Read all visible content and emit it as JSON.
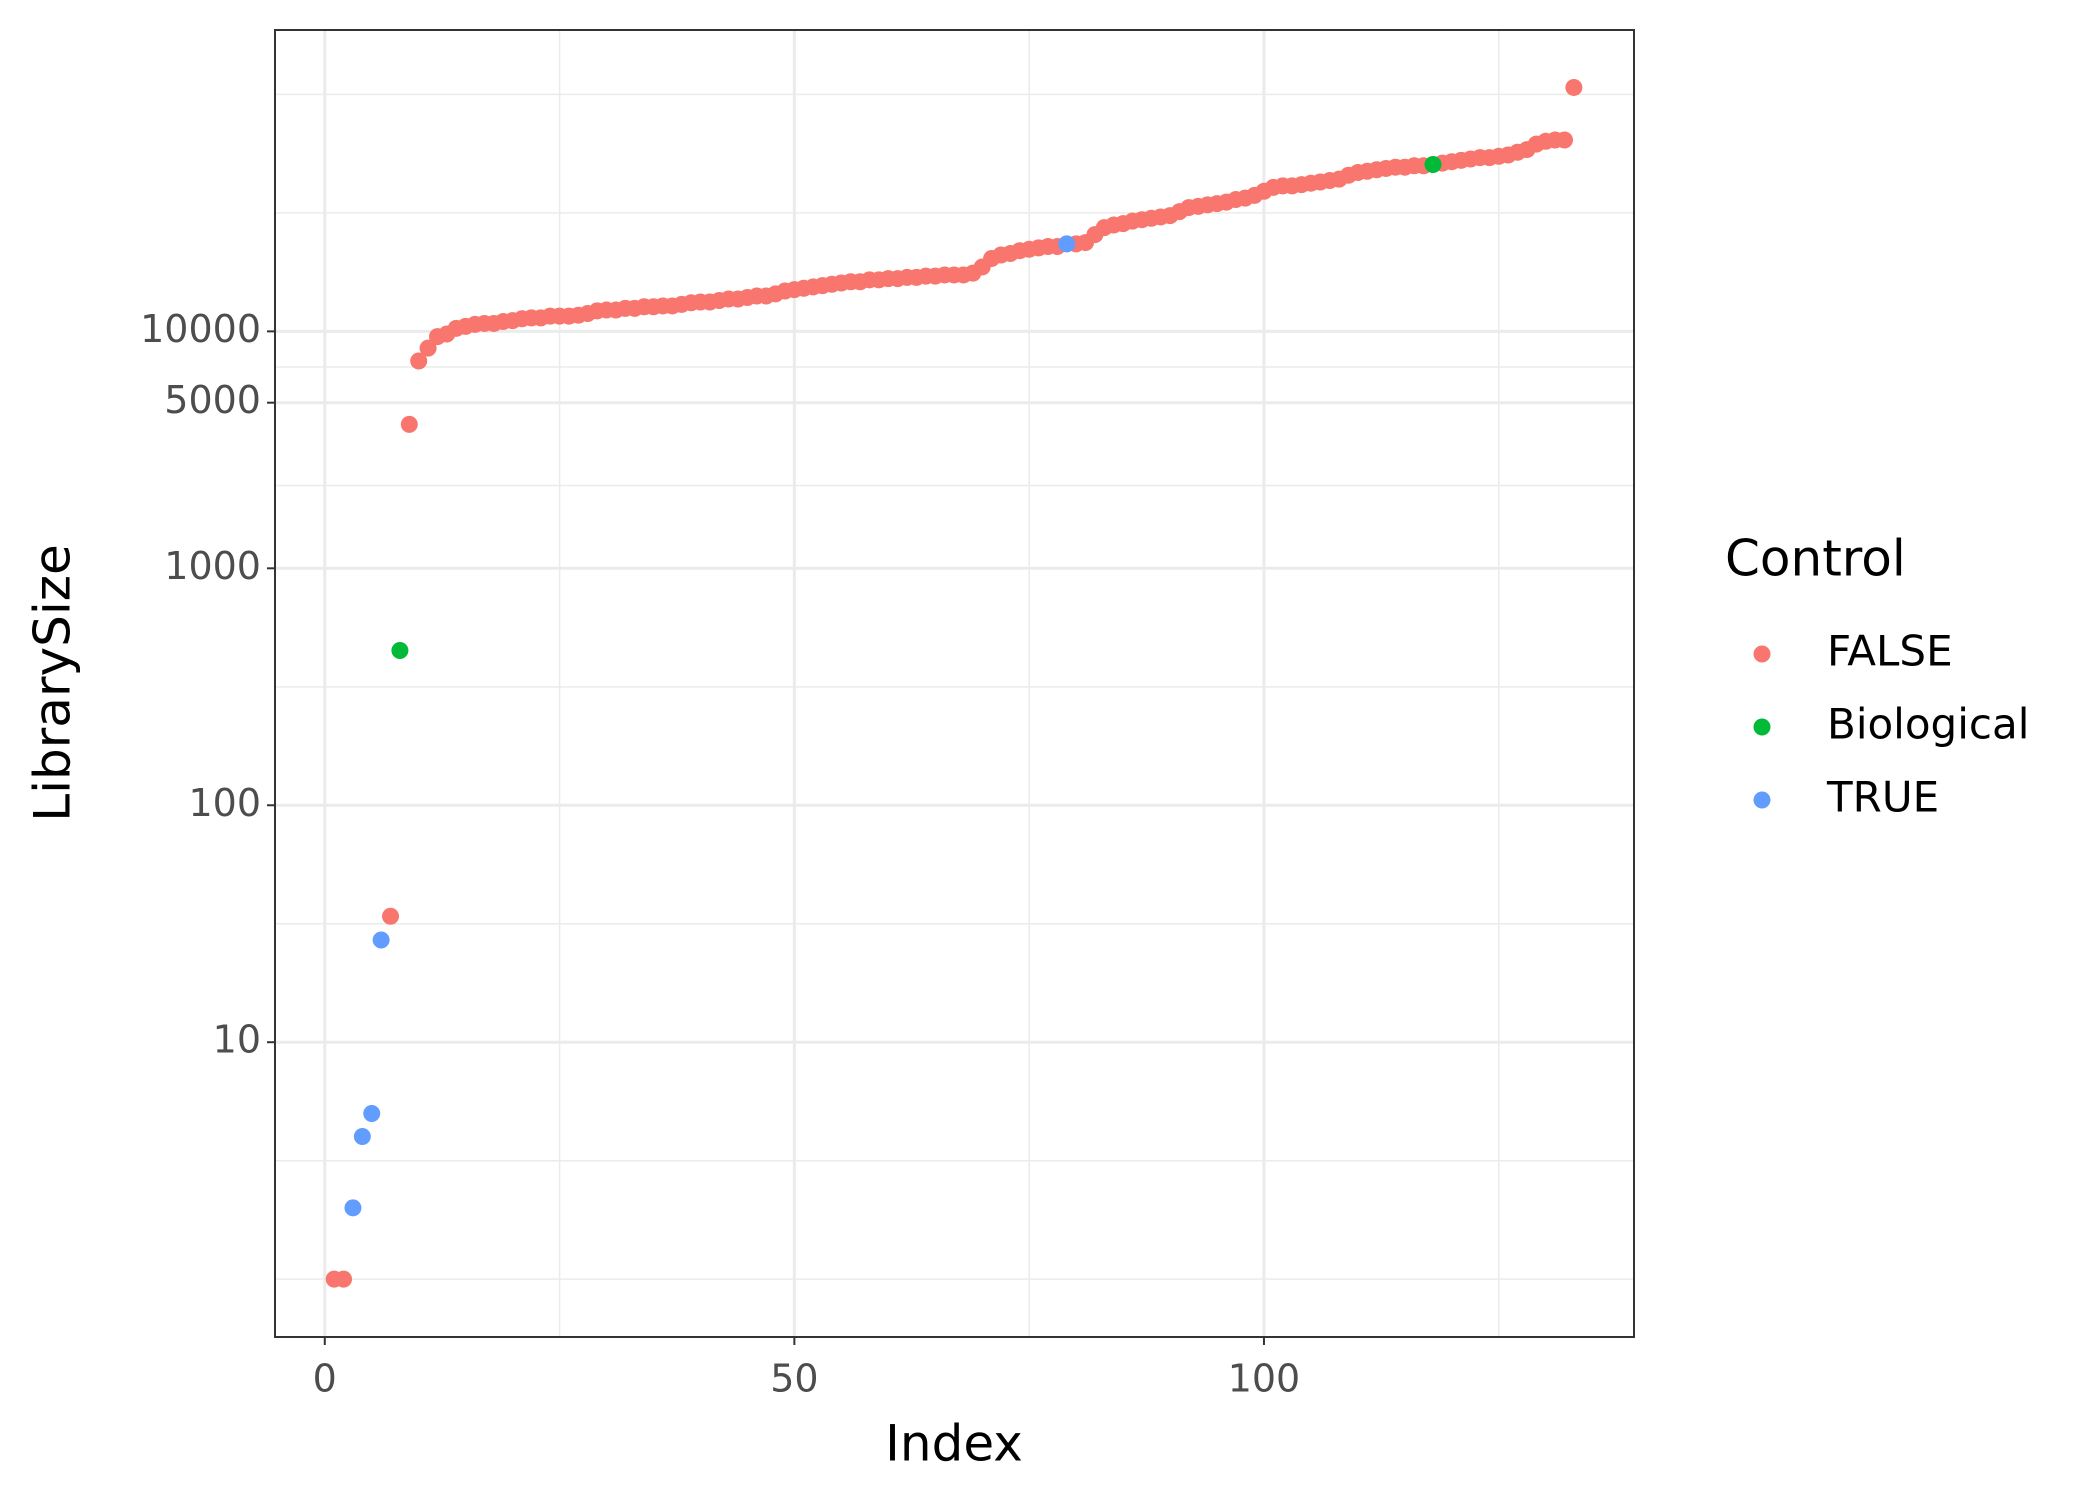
{
  "chart_data": {
    "type": "scatter",
    "x_label": "Index",
    "y_label": "LibrarySize",
    "legend_title": "Control",
    "log_y": true,
    "grid": true,
    "legend_position": "right",
    "xlim": [
      -5.3,
      139.4
    ],
    "xticks": [
      0,
      50,
      100
    ],
    "xminor": [
      25,
      75,
      125
    ],
    "ylim": [
      0.57,
      187000
    ],
    "yticks": [
      10,
      100,
      1000,
      5000,
      10000
    ],
    "yminor": [
      1,
      3.16,
      31.6,
      316,
      2236,
      7071,
      31623,
      100000
    ],
    "series": [
      {
        "name": "FALSE",
        "color": "#F8766D",
        "x": [
          1,
          2,
          7,
          9,
          10,
          11,
          12,
          13,
          14,
          15,
          16,
          17,
          18,
          19,
          20,
          21,
          22,
          23,
          24,
          25,
          26,
          27,
          28,
          29,
          30,
          31,
          32,
          33,
          34,
          35,
          36,
          37,
          38,
          39,
          40,
          41,
          42,
          43,
          44,
          45,
          46,
          47,
          48,
          49,
          50,
          51,
          52,
          53,
          54,
          55,
          56,
          57,
          58,
          59,
          60,
          61,
          62,
          63,
          64,
          65,
          66,
          67,
          68,
          69,
          70,
          71,
          72,
          73,
          74,
          75,
          76,
          77,
          78,
          80,
          81,
          82,
          83,
          84,
          85,
          86,
          87,
          88,
          89,
          90,
          91,
          92,
          93,
          94,
          95,
          96,
          97,
          98,
          99,
          100,
          101,
          102,
          103,
          104,
          105,
          106,
          107,
          108,
          109,
          110,
          111,
          112,
          113,
          114,
          115,
          116,
          117,
          119,
          120,
          121,
          122,
          123,
          124,
          125,
          126,
          127,
          128,
          129,
          130,
          131,
          132,
          133
        ],
        "values": [
          1,
          1,
          34,
          4050,
          7500,
          8500,
          9500,
          9750,
          10300,
          10500,
          10700,
          10800,
          10800,
          11000,
          11100,
          11300,
          11400,
          11400,
          11600,
          11600,
          11600,
          11700,
          11900,
          12200,
          12300,
          12300,
          12500,
          12500,
          12700,
          12700,
          12800,
          12800,
          13000,
          13200,
          13300,
          13300,
          13500,
          13700,
          13700,
          13900,
          14100,
          14100,
          14400,
          14800,
          15000,
          15200,
          15400,
          15600,
          15800,
          16000,
          16200,
          16200,
          16500,
          16500,
          16700,
          16700,
          16900,
          16900,
          17100,
          17100,
          17300,
          17300,
          17300,
          17600,
          18700,
          20300,
          21000,
          21300,
          21900,
          22200,
          22500,
          22800,
          22800,
          23400,
          23700,
          25600,
          27400,
          28100,
          28500,
          29200,
          29600,
          30000,
          30400,
          30800,
          32000,
          33300,
          33700,
          34200,
          34600,
          35100,
          36000,
          36500,
          37500,
          39000,
          40500,
          41100,
          41100,
          41600,
          42200,
          42700,
          43300,
          43900,
          45600,
          46800,
          47400,
          48100,
          48700,
          49300,
          49300,
          50000,
          50000,
          51300,
          52000,
          52700,
          53400,
          54100,
          54100,
          54800,
          55500,
          57000,
          58500,
          61700,
          63400,
          64200,
          64200,
          107000
        ]
      },
      {
        "name": "Biological",
        "color": "#00BA38",
        "x": [
          8,
          118
        ],
        "values": [
          450,
          50600
        ]
      },
      {
        "name": "TRUE",
        "color": "#619CFF",
        "x": [
          3,
          4,
          5,
          6,
          79
        ],
        "values": [
          2,
          4,
          5,
          27,
          23400
        ]
      }
    ]
  }
}
